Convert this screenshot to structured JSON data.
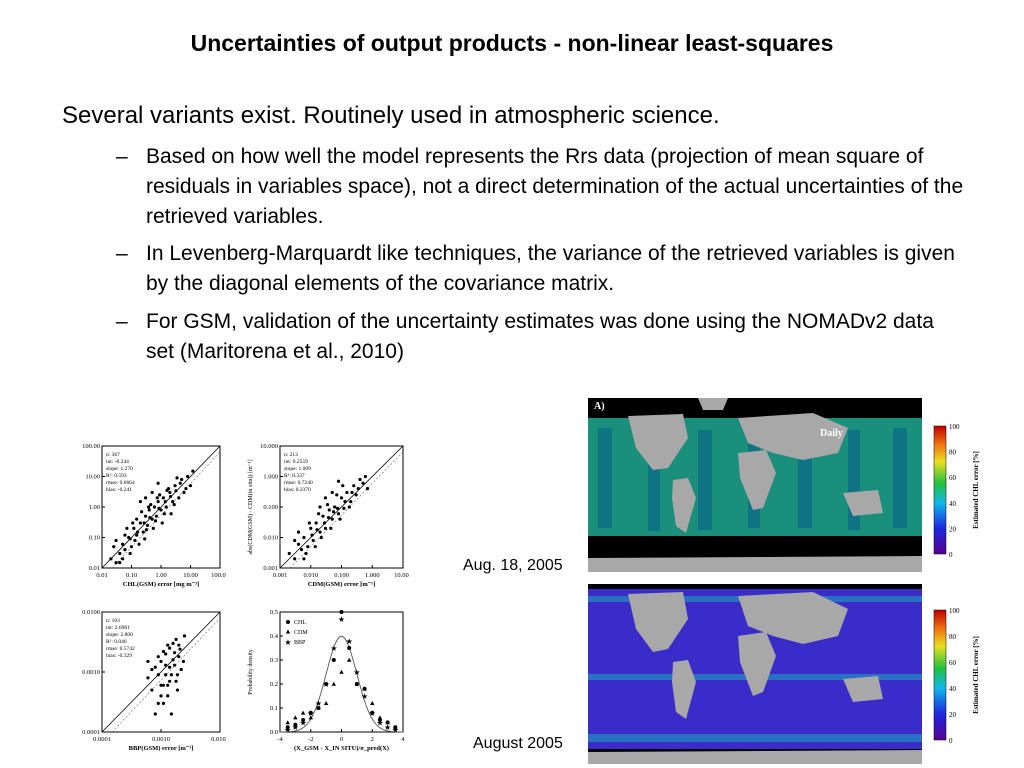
{
  "slide": {
    "title": "Uncertainties of output products - non-linear least-squares",
    "bullet_main": "Several variants exist. Routinely used in atmospheric science.",
    "dash": "–",
    "sub_bullets": [
      "Based on how well the model represents the Rrs data (projection of mean square of residuals in variables space), not a direct determination of the actual uncertainties of the retrieved variables.",
      "In Levenberg-Marquardt like techniques, the variance of the retrieved variables is given by the diagonal elements of the covariance matrix.",
      "For GSM, validation of the uncertainty estimates was done using the NOMADv2 data set (Maritorena et al., 2010)"
    ]
  },
  "maps": {
    "top_caption": "Aug. 18, 2005",
    "bottom_caption": "August 2005",
    "panel_label": "A)",
    "daily_label": "Daily",
    "colorbar_label": "Estimated CHL error [%]",
    "colorbar_ticks": [
      "100",
      "80",
      "60",
      "40",
      "20",
      "0"
    ],
    "colors": {
      "land": "#a8a8a8",
      "nodata": "#000000",
      "ocean_daily": "#1ea890",
      "ocean_monthly": "#3a2cc8"
    }
  },
  "chart_data": [
    {
      "type": "scatter",
      "xlabel": "CHL(GSM) error [mg m⁻³]",
      "ylabel": "",
      "xscale": "log",
      "yscale": "log",
      "xlim": [
        0.01,
        100
      ],
      "ylim": [
        0.01,
        100
      ],
      "xticks": [
        "0.01",
        "0.10",
        "1.00",
        "10.00",
        "100.00"
      ],
      "yticks": [
        "0.01",
        "0.10",
        "1.00",
        "10.00",
        "100.00"
      ],
      "stats": [
        "n: 367",
        "int: -0.244",
        "slope: 1.270",
        "R²: 0.593",
        "rmse: 0.6664",
        "bias: -0.241"
      ],
      "points": [
        [
          0.02,
          0.02
        ],
        [
          0.03,
          0.015
        ],
        [
          0.04,
          0.03
        ],
        [
          0.05,
          0.06
        ],
        [
          0.06,
          0.04
        ],
        [
          0.08,
          0.1
        ],
        [
          0.1,
          0.05
        ],
        [
          0.12,
          0.2
        ],
        [
          0.15,
          0.12
        ],
        [
          0.2,
          0.3
        ],
        [
          0.25,
          0.15
        ],
        [
          0.3,
          0.5
        ],
        [
          0.35,
          0.25
        ],
        [
          0.4,
          0.8
        ],
        [
          0.5,
          0.4
        ],
        [
          0.6,
          1.0
        ],
        [
          0.7,
          0.5
        ],
        [
          0.8,
          1.5
        ],
        [
          1.0,
          0.8
        ],
        [
          1.2,
          2.0
        ],
        [
          1.5,
          1.0
        ],
        [
          2.0,
          3.0
        ],
        [
          2.5,
          1.5
        ],
        [
          3.0,
          5.0
        ],
        [
          4.0,
          2.0
        ],
        [
          5.0,
          8.0
        ],
        [
          6.0,
          3.0
        ],
        [
          8.0,
          10.0
        ],
        [
          10.0,
          5.0
        ],
        [
          0.03,
          0.08
        ],
        [
          0.05,
          0.02
        ],
        [
          0.07,
          0.2
        ],
        [
          0.09,
          0.03
        ],
        [
          0.15,
          0.4
        ],
        [
          0.18,
          0.06
        ],
        [
          0.22,
          0.7
        ],
        [
          0.28,
          0.09
        ],
        [
          0.45,
          1.2
        ],
        [
          0.55,
          0.2
        ],
        [
          0.9,
          2.5
        ],
        [
          1.1,
          0.3
        ],
        [
          1.8,
          4.0
        ],
        [
          2.2,
          0.6
        ],
        [
          3.5,
          9.0
        ],
        [
          0.04,
          0.015
        ],
        [
          0.06,
          0.12
        ],
        [
          0.11,
          0.3
        ],
        [
          0.13,
          0.08
        ],
        [
          0.32,
          0.18
        ],
        [
          0.38,
          1.0
        ],
        [
          0.65,
          0.35
        ],
        [
          0.75,
          2.0
        ],
        [
          1.3,
          0.6
        ],
        [
          1.6,
          3.5
        ],
        [
          2.8,
          1.2
        ],
        [
          4.5,
          6.0
        ],
        [
          7.0,
          4.0
        ],
        [
          12.0,
          15.0
        ],
        [
          0.025,
          0.05
        ],
        [
          0.09,
          0.09
        ],
        [
          0.16,
          0.15
        ],
        [
          0.27,
          0.3
        ],
        [
          0.42,
          0.45
        ],
        [
          0.85,
          0.9
        ],
        [
          1.4,
          1.5
        ],
        [
          2.1,
          2.2
        ],
        [
          3.2,
          3.4
        ],
        [
          0.3,
          2.0
        ],
        [
          0.5,
          3.0
        ],
        [
          0.8,
          6.0
        ],
        [
          0.2,
          1.5
        ]
      ]
    },
    {
      "type": "scatter",
      "xlabel": "CDM(GSM) error [m⁻¹]",
      "ylabel": "abs(CDM(GSM) - CDM(in situ)) [m⁻¹]",
      "xscale": "log",
      "yscale": "log",
      "xlim": [
        0.001,
        10
      ],
      "ylim": [
        0.001,
        10
      ],
      "xticks": [
        "0.001",
        "0.010",
        "0.100",
        "1.000",
        "10.000"
      ],
      "yticks": [
        "0.001",
        "0.010",
        "0.100",
        "1.000",
        "10.000"
      ],
      "stats": [
        "n: 213",
        "int: 0.2559",
        "slope: 1.009",
        "R²: 0.337",
        "rmse: 0.7240",
        "bias: 0.2370"
      ],
      "points": [
        [
          0.002,
          0.003
        ],
        [
          0.003,
          0.002
        ],
        [
          0.004,
          0.006
        ],
        [
          0.005,
          0.004
        ],
        [
          0.006,
          0.01
        ],
        [
          0.008,
          0.005
        ],
        [
          0.01,
          0.02
        ],
        [
          0.012,
          0.008
        ],
        [
          0.015,
          0.03
        ],
        [
          0.02,
          0.015
        ],
        [
          0.025,
          0.05
        ],
        [
          0.03,
          0.02
        ],
        [
          0.04,
          0.08
        ],
        [
          0.05,
          0.04
        ],
        [
          0.06,
          0.1
        ],
        [
          0.08,
          0.06
        ],
        [
          0.1,
          0.2
        ],
        [
          0.12,
          0.09
        ],
        [
          0.15,
          0.3
        ],
        [
          0.2,
          0.15
        ],
        [
          0.25,
          0.5
        ],
        [
          0.3,
          0.25
        ],
        [
          0.4,
          0.8
        ],
        [
          0.5,
          0.6
        ],
        [
          0.003,
          0.008
        ],
        [
          0.007,
          0.003
        ],
        [
          0.009,
          0.03
        ],
        [
          0.014,
          0.005
        ],
        [
          0.018,
          0.06
        ],
        [
          0.022,
          0.01
        ],
        [
          0.035,
          0.12
        ],
        [
          0.045,
          0.02
        ],
        [
          0.07,
          0.25
        ],
        [
          0.09,
          0.04
        ],
        [
          0.11,
          0.5
        ],
        [
          0.18,
          0.1
        ],
        [
          0.006,
          0.002
        ],
        [
          0.011,
          0.012
        ],
        [
          0.016,
          0.018
        ],
        [
          0.028,
          0.03
        ],
        [
          0.038,
          0.045
        ],
        [
          0.055,
          0.07
        ],
        [
          0.075,
          0.09
        ],
        [
          0.13,
          0.15
        ],
        [
          0.22,
          0.3
        ],
        [
          0.35,
          0.4
        ],
        [
          0.6,
          1.0
        ],
        [
          0.7,
          0.4
        ],
        [
          0.004,
          0.015
        ],
        [
          0.02,
          0.1
        ],
        [
          0.03,
          0.2
        ],
        [
          0.05,
          0.3
        ],
        [
          0.08,
          0.7
        ]
      ]
    },
    {
      "type": "scatter",
      "xlabel": "BBP(GSM) error [m⁻¹]",
      "ylabel": "",
      "xscale": "log",
      "yscale": "log",
      "xlim": [
        0.0001,
        0.01
      ],
      "ylim": [
        0.0001,
        0.01
      ],
      "xticks": [
        "0.0001",
        "0.0010",
        "0.0100"
      ],
      "yticks": [
        "0.0001",
        "0.0010",
        "0.0100"
      ],
      "stats": [
        "n: 103",
        "int: 2.6981",
        "slope: 2.800",
        "R²: 0.046",
        "rmse: 0.5742",
        "bias: -0.329"
      ],
      "points": [
        [
          0.0006,
          0.0008
        ],
        [
          0.0007,
          0.0005
        ],
        [
          0.0008,
          0.0012
        ],
        [
          0.0009,
          0.0003
        ],
        [
          0.001,
          0.0015
        ],
        [
          0.0011,
          0.0006
        ],
        [
          0.0012,
          0.002
        ],
        [
          0.0013,
          0.0004
        ],
        [
          0.0014,
          0.0025
        ],
        [
          0.0015,
          0.0009
        ],
        [
          0.0016,
          0.003
        ],
        [
          0.0018,
          0.0007
        ],
        [
          0.002,
          0.0018
        ],
        [
          0.0022,
          0.0011
        ],
        [
          0.0025,
          0.004
        ],
        [
          0.0008,
          0.0002
        ],
        [
          0.0009,
          0.0018
        ],
        [
          0.001,
          0.0006
        ],
        [
          0.0012,
          0.0009
        ],
        [
          0.0013,
          0.0028
        ],
        [
          0.0015,
          0.0002
        ],
        [
          0.0017,
          0.0013
        ],
        [
          0.0019,
          0.0005
        ],
        [
          0.0021,
          0.0024
        ],
        [
          0.0007,
          0.0011
        ],
        [
          0.001,
          0.0004
        ],
        [
          0.0011,
          0.0022
        ],
        [
          0.0014,
          0.0007
        ],
        [
          0.0016,
          0.0016
        ],
        [
          0.0018,
          0.0035
        ],
        [
          0.0012,
          0.0013
        ],
        [
          0.0009,
          0.0009
        ],
        [
          0.0013,
          0.0006
        ],
        [
          0.0024,
          0.0015
        ],
        [
          0.0006,
          0.0015
        ],
        [
          0.0017,
          0.0021
        ],
        [
          0.0011,
          0.0003
        ],
        [
          0.0014,
          0.0012
        ],
        [
          0.0019,
          0.0009
        ],
        [
          0.002,
          0.0028
        ]
      ]
    },
    {
      "type": "line",
      "xlabel": "(X_GSM - X_IN SITU)/σ_pred(X)",
      "ylabel": "Probability density",
      "xlim": [
        -4,
        4
      ],
      "ylim": [
        0.0,
        0.5
      ],
      "xticks": [
        "-4",
        "-2",
        "0",
        "2",
        "4"
      ],
      "yticks": [
        "0.0",
        "0.1",
        "0.2",
        "0.3",
        "0.4",
        "0.5"
      ],
      "curve": "standard normal density",
      "series": [
        {
          "name": "CHL",
          "marker": "circle",
          "x": [
            -3.5,
            -3,
            -2.5,
            -2,
            -1.5,
            -1,
            -0.5,
            0,
            0.5,
            1,
            1.5,
            2,
            2.5,
            3,
            3.5
          ],
          "y": [
            0.02,
            0.03,
            0.05,
            0.08,
            0.1,
            0.2,
            0.3,
            0.5,
            0.35,
            0.2,
            0.18,
            0.08,
            0.05,
            0.04,
            0.02
          ]
        },
        {
          "name": "CDM",
          "marker": "triangle",
          "x": [
            -3.5,
            -3,
            -2.5,
            -2,
            -1.5,
            -1,
            -0.5,
            0,
            0.5,
            1,
            1.5,
            2,
            2.5,
            3,
            3.5
          ],
          "y": [
            0.04,
            0.06,
            0.08,
            0.06,
            0.1,
            0.12,
            0.2,
            0.25,
            0.3,
            0.2,
            0.18,
            0.12,
            0.06,
            0.04,
            0.02
          ]
        },
        {
          "name": "BBP",
          "marker": "star",
          "x": [
            -3.5,
            -3,
            -2.5,
            -2,
            -1.5,
            -1,
            -0.5,
            0,
            0.5,
            1,
            1.5,
            2,
            2.5,
            3,
            3.5
          ],
          "y": [
            0.01,
            0.02,
            0.04,
            0.08,
            0.12,
            0.2,
            0.35,
            0.47,
            0.38,
            0.25,
            0.15,
            0.08,
            0.04,
            0.02,
            0.01
          ]
        }
      ]
    }
  ]
}
